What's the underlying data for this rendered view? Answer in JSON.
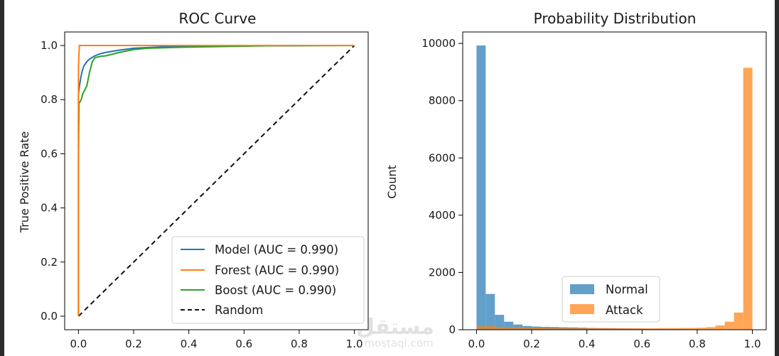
{
  "watermark": {
    "brand_text": "مستقل",
    "url_text": "mostaql.com"
  },
  "chart_data": [
    {
      "type": "line",
      "title": "ROC Curve",
      "xlabel": "",
      "ylabel": "True Positive Rate",
      "xlim": [
        -0.05,
        1.05
      ],
      "ylim": [
        -0.05,
        1.05
      ],
      "xticks": [
        0.0,
        0.2,
        0.4,
        0.6,
        0.8,
        1.0
      ],
      "xtick_labels": [
        "0.0",
        "0.2",
        "0.4",
        "0.6",
        "0.8",
        "1.0"
      ],
      "yticks": [
        0.0,
        0.2,
        0.4,
        0.6,
        0.8,
        1.0
      ],
      "ytick_labels": [
        "0.0",
        "0.2",
        "0.4",
        "0.6",
        "0.8",
        "1.0"
      ],
      "grid": false,
      "legend_position": "bottom-right",
      "series": [
        {
          "name": "Model (AUC = 0.990)",
          "color": "#1f77b4",
          "style": "solid",
          "x": [
            0.0,
            0.0,
            0.005,
            0.01,
            0.015,
            0.02,
            0.03,
            0.04,
            0.06,
            0.08,
            0.1,
            0.15,
            0.2,
            0.3,
            0.5,
            0.7,
            1.0
          ],
          "y": [
            0.0,
            0.82,
            0.86,
            0.89,
            0.91,
            0.925,
            0.94,
            0.95,
            0.962,
            0.97,
            0.975,
            0.983,
            0.99,
            0.995,
            0.998,
            0.999,
            1.0
          ]
        },
        {
          "name": "Forest (AUC = 0.990)",
          "color": "#ff7f0e",
          "style": "solid",
          "x": [
            0.0,
            0.0,
            0.003,
            1.0
          ],
          "y": [
            0.0,
            0.92,
            1.0,
            1.0
          ]
        },
        {
          "name": "Boost (AUC = 0.990)",
          "color": "#2ca02c",
          "style": "solid",
          "x": [
            0.0,
            0.0,
            0.002,
            0.005,
            0.01,
            0.015,
            0.02,
            0.025,
            0.03,
            0.04,
            0.05,
            0.06,
            0.08,
            0.1,
            0.15,
            0.2,
            0.25,
            0.35,
            0.5,
            0.7,
            1.0
          ],
          "y": [
            0.0,
            0.57,
            0.79,
            0.79,
            0.8,
            0.82,
            0.83,
            0.84,
            0.85,
            0.9,
            0.94,
            0.955,
            0.96,
            0.962,
            0.975,
            0.985,
            0.99,
            0.993,
            0.996,
            0.999,
            1.0
          ]
        },
        {
          "name": "Random",
          "color": "#111111",
          "style": "dashed",
          "x": [
            0.0,
            1.0
          ],
          "y": [
            0.0,
            1.0
          ]
        }
      ]
    },
    {
      "type": "bar",
      "title": "Probability Distribution",
      "xlabel": "",
      "ylabel": "Count",
      "xlim": [
        -0.05,
        1.05
      ],
      "ylim": [
        0,
        10400
      ],
      "xticks": [
        0.0,
        0.2,
        0.4,
        0.6,
        0.8,
        1.0
      ],
      "xtick_labels": [
        "0.0",
        "0.2",
        "0.4",
        "0.6",
        "0.8",
        "1.0"
      ],
      "yticks": [
        0,
        2000,
        4000,
        6000,
        8000,
        10000
      ],
      "ytick_labels": [
        "0",
        "2000",
        "4000",
        "6000",
        "8000",
        "10000"
      ],
      "grid": false,
      "legend_position": "bottom-center",
      "bins": 30,
      "bin_range": [
        0.0,
        1.0
      ],
      "series": [
        {
          "name": "Normal",
          "color": "#1f77b4",
          "alpha": 0.7,
          "values": [
            9930,
            1250,
            520,
            280,
            180,
            130,
            110,
            100,
            95,
            85,
            80,
            70,
            60,
            55,
            50,
            45,
            40,
            35,
            30,
            28,
            25,
            22,
            20,
            18,
            15,
            12,
            10,
            8,
            5,
            3
          ]
        },
        {
          "name": "Attack",
          "color": "#ff7f0e",
          "alpha": 0.7,
          "values": [
            120,
            130,
            100,
            90,
            80,
            70,
            70,
            65,
            60,
            60,
            60,
            60,
            55,
            55,
            55,
            50,
            50,
            50,
            50,
            50,
            55,
            55,
            60,
            60,
            70,
            90,
            150,
            280,
            600,
            9150
          ]
        }
      ]
    }
  ]
}
